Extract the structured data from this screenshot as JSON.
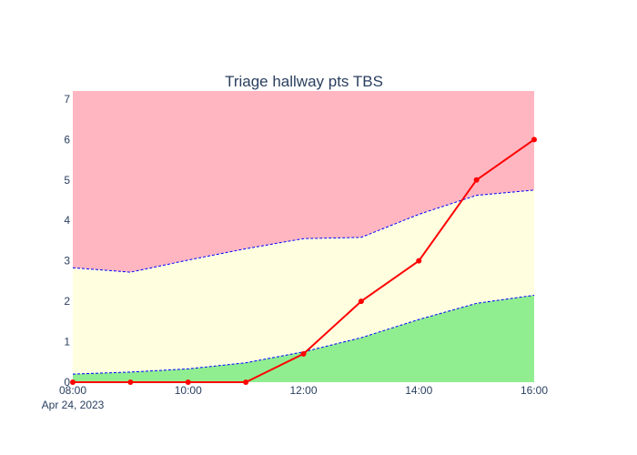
{
  "chart_data": {
    "type": "area",
    "title": "Triage hallway pts TBS",
    "xlabel": "",
    "ylabel": "",
    "x": [
      "2023-04-24 08:00",
      "2023-04-24 09:00",
      "2023-04-24 10:00",
      "2023-04-24 11:00",
      "2023-04-24 12:00",
      "2023-04-24 13:00",
      "2023-04-24 14:00",
      "2023-04-24 15:00",
      "2023-04-24 16:00"
    ],
    "xlim": [
      "2023-04-24 08:00",
      "2023-04-24 16:00"
    ],
    "ylim": [
      0,
      7.2
    ],
    "x_ticks": [
      "08:00",
      "10:00",
      "12:00",
      "14:00",
      "16:00"
    ],
    "x_tick_values": [
      "2023-04-24 08:00",
      "2023-04-24 10:00",
      "2023-04-24 12:00",
      "2023-04-24 14:00",
      "2023-04-24 16:00"
    ],
    "x_date_label": "Apr 24, 2023",
    "y_ticks": [
      0,
      1,
      2,
      3,
      4,
      5,
      6,
      7
    ],
    "grid": false,
    "legend": "none",
    "bands": {
      "lower": [
        0.2,
        0.25,
        0.33,
        0.48,
        0.75,
        1.1,
        1.55,
        1.95,
        2.15
      ],
      "upper": [
        2.83,
        2.72,
        3.02,
        3.3,
        3.55,
        3.58,
        4.15,
        4.62,
        4.75
      ],
      "colors": {
        "low": "#90ee90",
        "mid": "#ffffe0",
        "high": "#ffb6c1",
        "boundary": "#0000ff"
      }
    },
    "series": [
      {
        "values": [
          0,
          0,
          0,
          0,
          0.7,
          2,
          3,
          5,
          6
        ],
        "color": "#ff0000"
      }
    ]
  }
}
